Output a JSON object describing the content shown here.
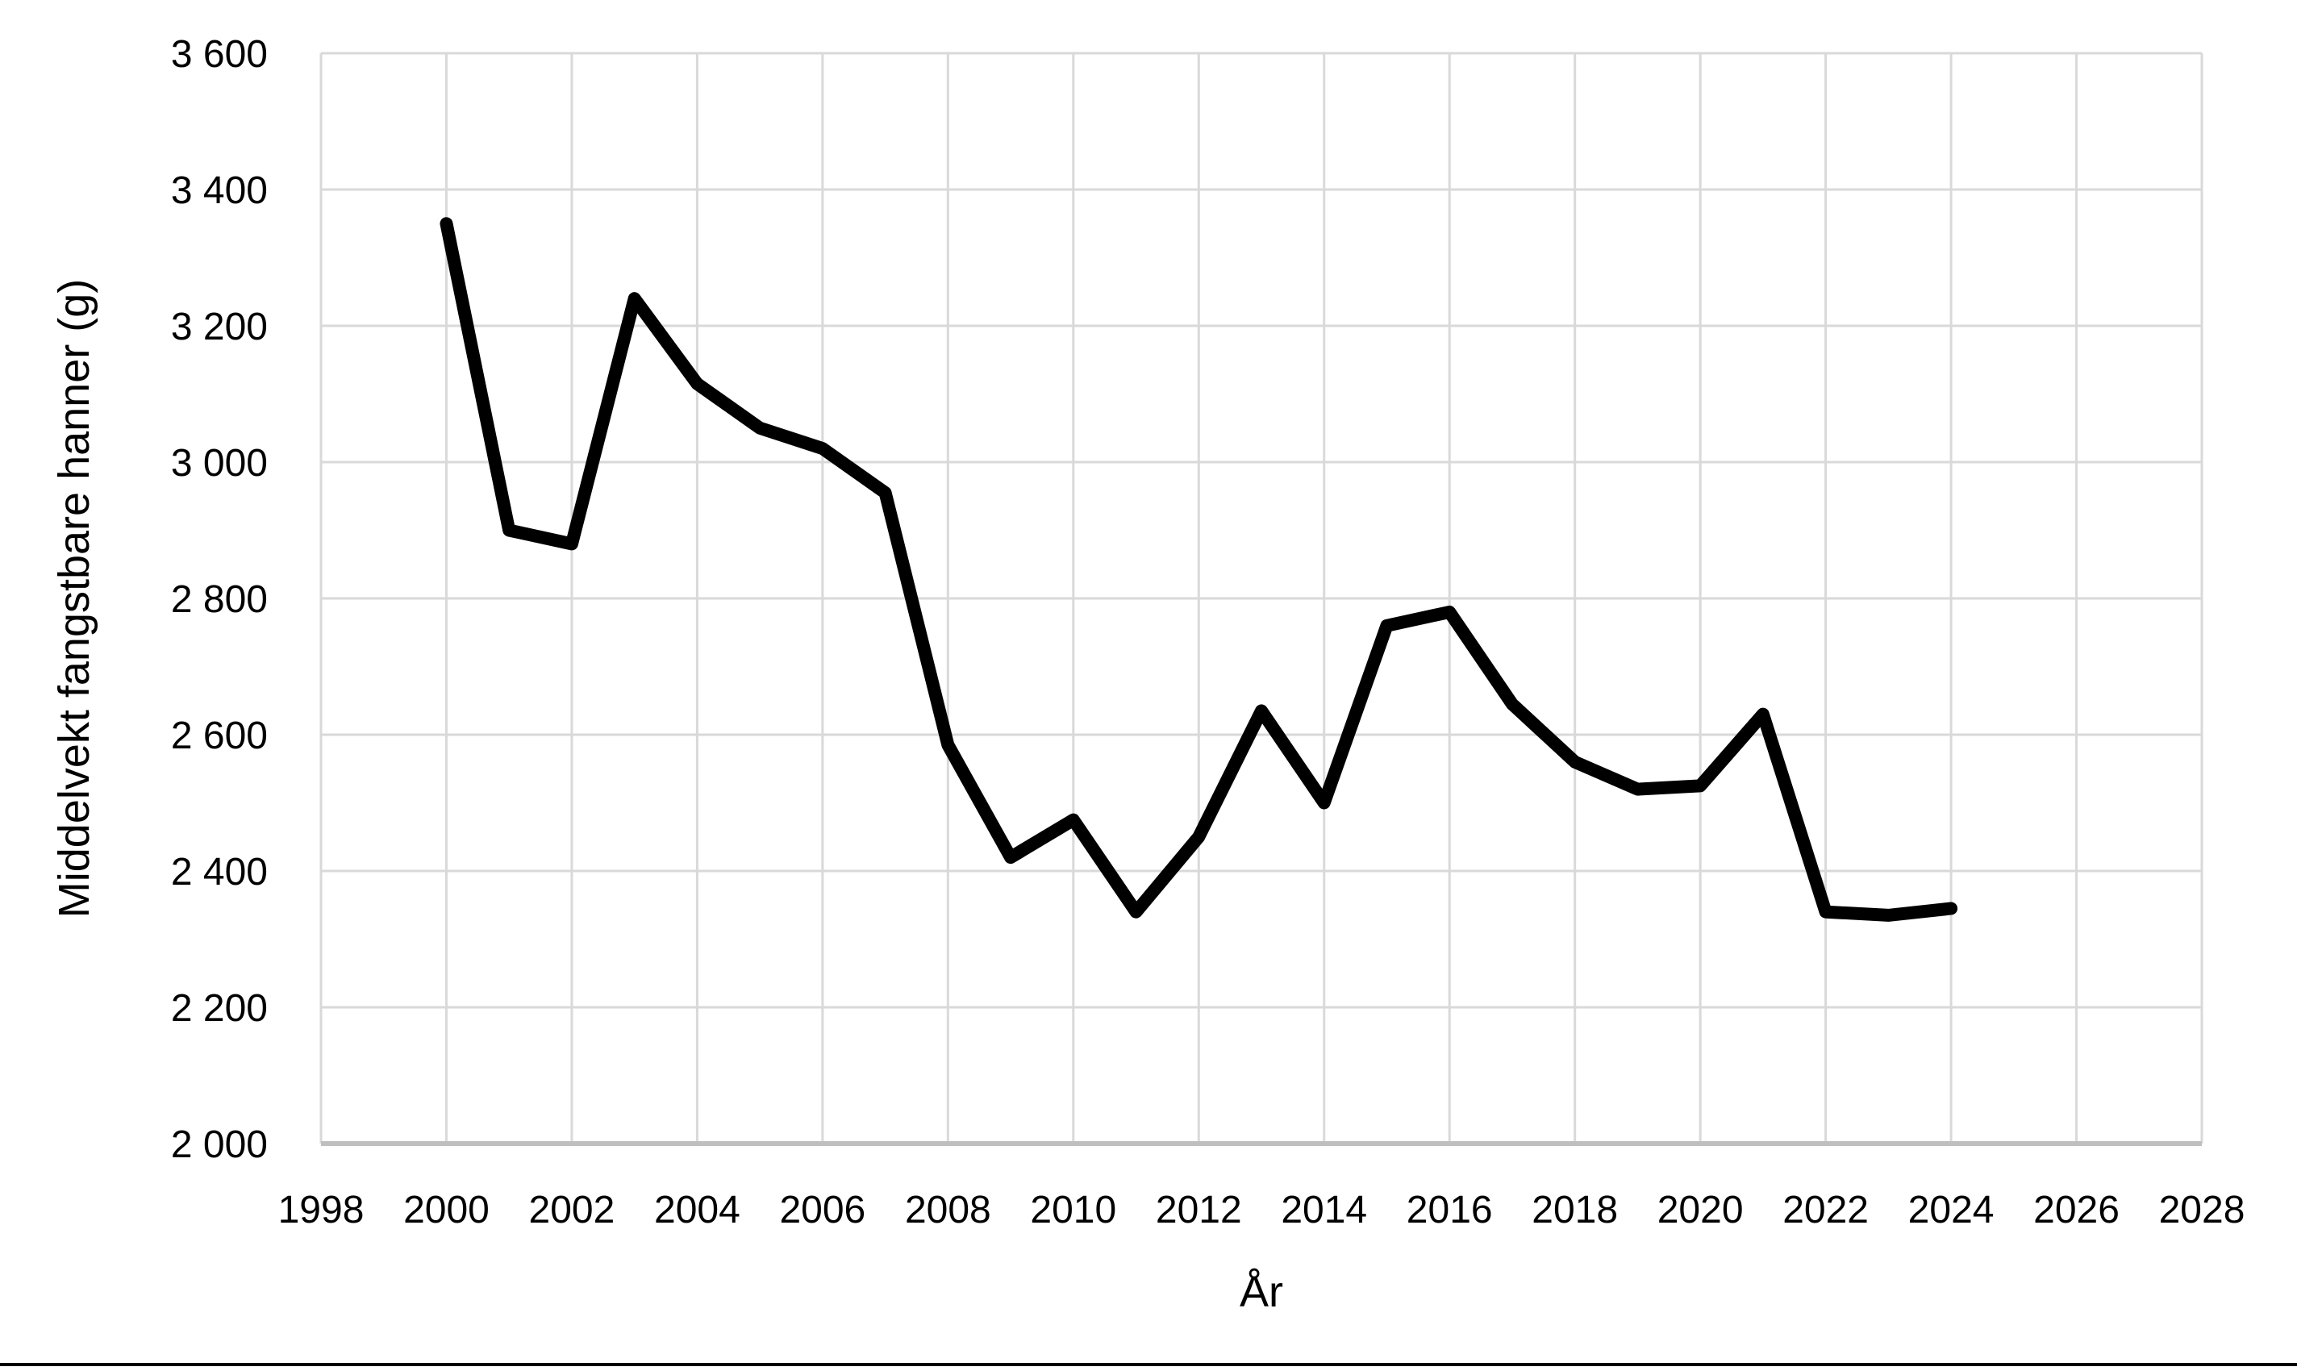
{
  "page": {
    "background_color": "#ffffff",
    "bottom_rule_color": "#000000"
  },
  "chart_data": {
    "type": "line",
    "title": "",
    "xlabel": "År",
    "ylabel": "Middelvekt fangstbare hanner (g)",
    "x": [
      2000,
      2001,
      2002,
      2003,
      2004,
      2005,
      2006,
      2007,
      2008,
      2009,
      2010,
      2011,
      2012,
      2013,
      2014,
      2015,
      2016,
      2017,
      2018,
      2019,
      2020,
      2021,
      2022,
      2023,
      2024
    ],
    "series": [
      {
        "name": "Middelvekt fangstbare hanner",
        "color": "#000000",
        "values": [
          3350,
          2900,
          2880,
          3240,
          3115,
          3050,
          3020,
          2955,
          2585,
          2420,
          2475,
          2340,
          2450,
          2635,
          2500,
          2760,
          2780,
          2645,
          2560,
          2520,
          2525,
          2630,
          2340,
          2335,
          2345
        ]
      }
    ],
    "xlim": [
      1998,
      2028
    ],
    "ylim": [
      2000,
      3600
    ],
    "x_ticks": [
      1998,
      2000,
      2002,
      2004,
      2006,
      2008,
      2010,
      2012,
      2014,
      2016,
      2018,
      2020,
      2022,
      2024,
      2026,
      2028
    ],
    "x_tick_labels": [
      "1998",
      "2000",
      "2002",
      "2004",
      "2006",
      "2008",
      "2010",
      "2012",
      "2014",
      "2016",
      "2018",
      "2020",
      "2022",
      "2024",
      "2026",
      "2028"
    ],
    "y_ticks": [
      2000,
      2200,
      2400,
      2600,
      2800,
      3000,
      3200,
      3400,
      3600
    ],
    "y_tick_labels": [
      "2 000",
      "2 200",
      "2 400",
      "2 600",
      "2 800",
      "3 000",
      "3 200",
      "3 400",
      "3 600"
    ],
    "grid": true,
    "gridline_color": "#d9d9d9",
    "axis_line_color": "#bfbfbf",
    "label_color": "#000000",
    "legend_position": "none",
    "line_width": 16
  }
}
